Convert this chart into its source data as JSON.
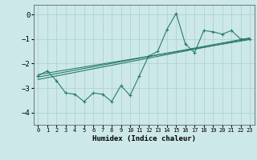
{
  "x": [
    0,
    1,
    2,
    3,
    4,
    5,
    6,
    7,
    8,
    9,
    10,
    11,
    12,
    13,
    14,
    15,
    16,
    17,
    18,
    19,
    20,
    21,
    22,
    23
  ],
  "y_main": [
    -2.5,
    -2.3,
    -2.7,
    -3.2,
    -3.25,
    -3.55,
    -3.2,
    -3.25,
    -3.55,
    -2.9,
    -3.3,
    -2.5,
    -1.7,
    -1.5,
    -0.6,
    0.05,
    -1.2,
    -1.55,
    -0.65,
    -0.7,
    -0.8,
    -0.65,
    -1.0,
    -1.0
  ],
  "line_color": "#2a7b6e",
  "bg_color": "#cce8e8",
  "xlabel": "Humidex (Indice chaleur)",
  "ylim": [
    -4.5,
    0.4
  ],
  "xlim": [
    -0.5,
    23.5
  ],
  "yticks": [
    0,
    -1,
    -2,
    -3,
    -4
  ],
  "xticks": [
    0,
    1,
    2,
    3,
    4,
    5,
    6,
    7,
    8,
    9,
    10,
    11,
    12,
    13,
    14,
    15,
    16,
    17,
    18,
    19,
    20,
    21,
    22,
    23
  ],
  "grid_color": "#aacfcf",
  "trend1_x": [
    0,
    23
  ],
  "trend1_y": [
    -2.55,
    -0.95
  ],
  "trend2_x": [
    0,
    23
  ],
  "trend2_y": [
    -2.65,
    -0.98
  ],
  "trend3_x": [
    0,
    23
  ],
  "trend3_y": [
    -2.45,
    -1.02
  ]
}
